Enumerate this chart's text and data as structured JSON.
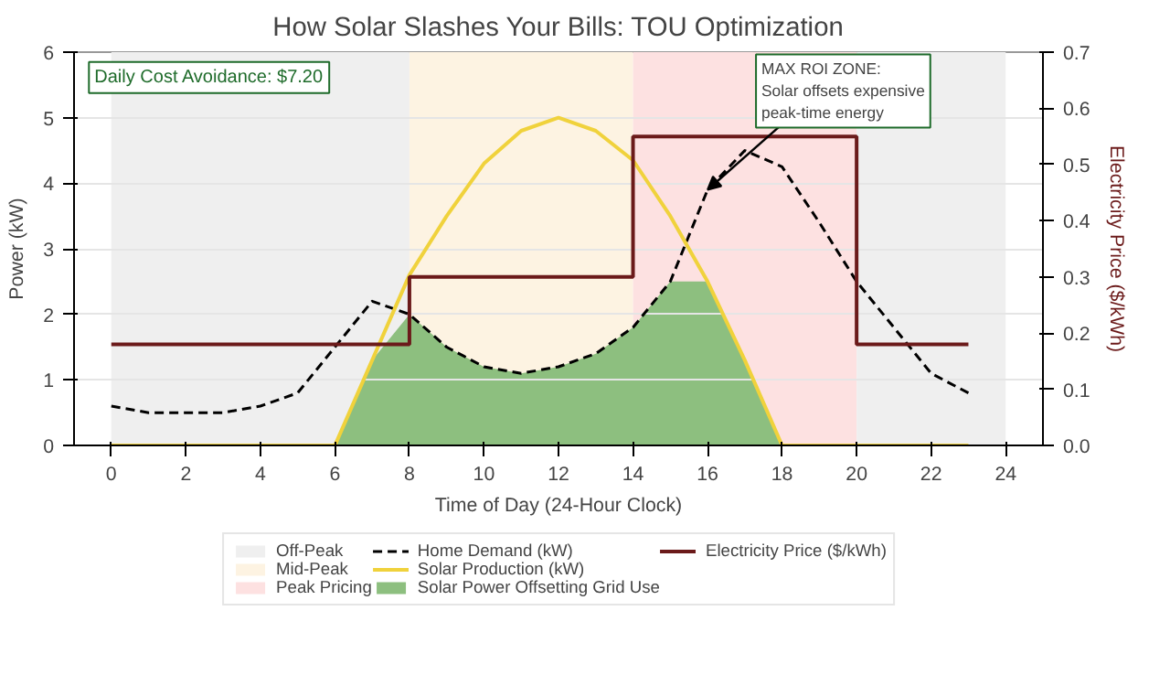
{
  "chart_data": {
    "type": "line",
    "title": "How Solar Slashes Your Bills: TOU Optimization",
    "xlabel": "Time of Day (24-Hour Clock)",
    "ylabel": "Power (kW)",
    "y2label": "Electricity Price ($/kWh)",
    "x": [
      0,
      1,
      2,
      3,
      4,
      5,
      6,
      7,
      8,
      9,
      10,
      11,
      12,
      13,
      14,
      15,
      16,
      17,
      18,
      19,
      20,
      21,
      22,
      23
    ],
    "series": [
      {
        "name": "Home Demand (kW)",
        "color": "#000000",
        "line_style": "dashed",
        "values": [
          0.6,
          0.5,
          0.5,
          0.5,
          0.6,
          0.8,
          1.5,
          2.2,
          2.0,
          1.5,
          1.2,
          1.1,
          1.2,
          1.4,
          1.8,
          2.5,
          3.9,
          4.5,
          4.25,
          3.4,
          2.5,
          1.8,
          1.1,
          0.8
        ]
      },
      {
        "name": "Solar Production (kW)",
        "color": "#f0d23c",
        "values": [
          0,
          0,
          0,
          0,
          0,
          0,
          0,
          1.3,
          2.6,
          3.5,
          4.3,
          4.8,
          5.0,
          4.8,
          4.35,
          3.5,
          2.5,
          1.3,
          0,
          0,
          0,
          0,
          0,
          0
        ]
      },
      {
        "name": "Solar Power Offsetting Grid Use",
        "type": "area",
        "color": "#8dbf7f",
        "x": [
          6,
          7,
          8,
          9,
          10,
          11,
          12,
          13,
          14,
          15,
          16,
          17,
          18
        ],
        "values": [
          0,
          1.3,
          2.0,
          1.5,
          1.2,
          1.1,
          1.2,
          1.4,
          1.8,
          2.5,
          2.5,
          1.3,
          0
        ]
      },
      {
        "name": "Electricity Price ($/kWh)",
        "type": "step",
        "axis": "y2",
        "color": "#6b1a1a",
        "x": [
          0,
          8,
          14,
          20,
          23
        ],
        "values": [
          0.18,
          0.3,
          0.55,
          0.18,
          0.18
        ]
      }
    ],
    "bands": [
      {
        "axis": "x",
        "from": 0,
        "to": 8,
        "label": "Off-Peak",
        "color": "#efefef"
      },
      {
        "axis": "x",
        "from": 8,
        "to": 14,
        "label": "Mid-Peak",
        "color": "#fdf3e2"
      },
      {
        "axis": "x",
        "from": 14,
        "to": 20,
        "label": "Peak Pricing",
        "color": "#fde1e1"
      },
      {
        "axis": "x",
        "from": 20,
        "to": 24,
        "color": "#efefef"
      }
    ],
    "annotations": [
      "Daily Cost Avoidance: $7.20",
      {
        "text": "MAX ROI ZONE:\nSolar offsets expensive\npeak-time energy",
        "x": 16,
        "y": 3.9
      }
    ],
    "xlim": [
      -1,
      25
    ],
    "xticks": [
      0,
      2,
      4,
      6,
      8,
      10,
      12,
      14,
      16,
      18,
      20,
      22,
      24
    ],
    "ylim": [
      0,
      6
    ],
    "yticks": [
      0,
      1,
      2,
      3,
      4,
      5,
      6
    ],
    "y2lim": [
      0,
      0.7
    ],
    "y2ticks": [
      {
        "value": 0,
        "label": "0.0"
      },
      0.1,
      0.2,
      0.3,
      0.4,
      0.5,
      0.6,
      0.7
    ],
    "grid": "y",
    "legend": "bottom"
  }
}
